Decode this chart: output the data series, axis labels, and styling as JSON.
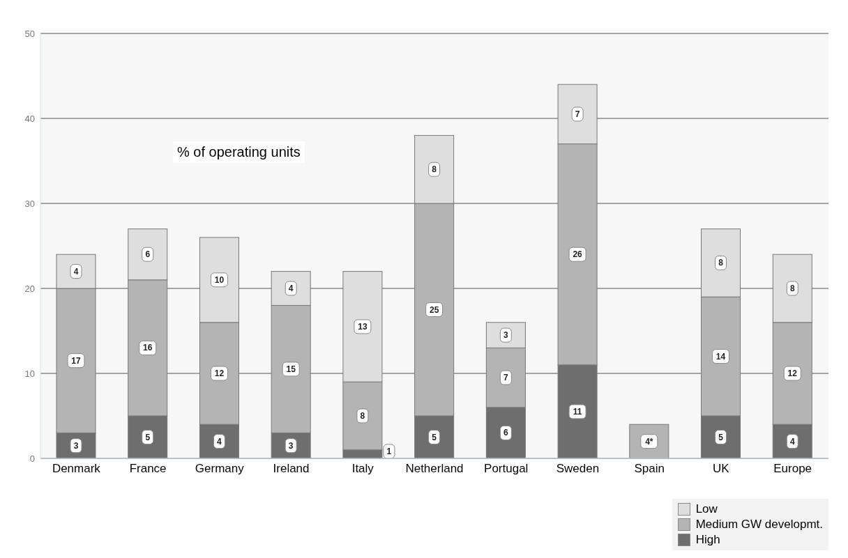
{
  "chart_data": {
    "type": "bar",
    "title": "% of operating units",
    "stacked": true,
    "categories": [
      "Denmark",
      "France",
      "Germany",
      "Ireland",
      "Italy",
      "Netherland",
      "Portugal",
      "Sweden",
      "Spain",
      "UK",
      "Europe"
    ],
    "series": [
      {
        "name": "High",
        "color": "#6e6e6e",
        "values": [
          3,
          5,
          4,
          3,
          1,
          5,
          6,
          11,
          null,
          5,
          4
        ],
        "value_labels": [
          "3",
          "5",
          "4",
          "3",
          "1",
          "5",
          "6",
          "11",
          null,
          "5",
          "4"
        ]
      },
      {
        "name": "Medium GW developmt.",
        "color": "#b4b4b4",
        "values": [
          17,
          16,
          12,
          15,
          8,
          25,
          7,
          26,
          4,
          14,
          12
        ],
        "value_labels": [
          "17",
          "16",
          "12",
          "15",
          "8",
          "25",
          "7",
          "26",
          "4*",
          "14",
          "12"
        ]
      },
      {
        "name": "Low",
        "color": "#dedede",
        "values": [
          4,
          6,
          10,
          4,
          13,
          8,
          3,
          7,
          null,
          8,
          8
        ],
        "value_labels": [
          "4",
          "6",
          "10",
          "4",
          "13",
          "8",
          "3",
          "7",
          null,
          "8",
          "8"
        ]
      }
    ],
    "ylim": [
      0,
      50
    ],
    "yticks": [
      0,
      10,
      20,
      30,
      40,
      50
    ],
    "grid": "y",
    "legend": "bottom right"
  }
}
